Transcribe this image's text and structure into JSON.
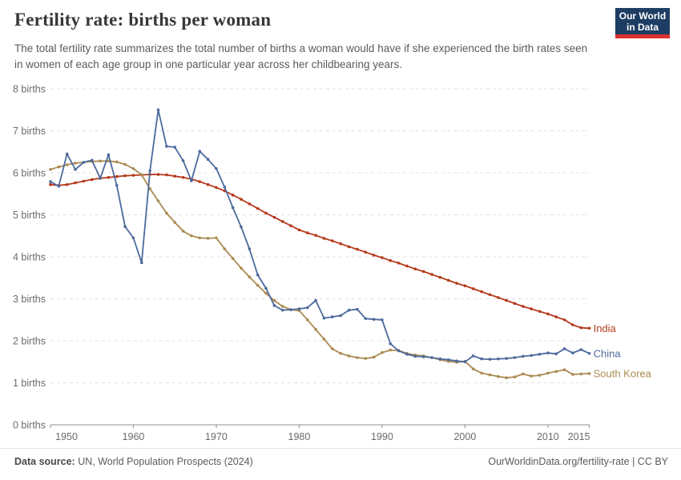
{
  "header": {
    "title": "Fertility rate: births per woman",
    "subtitle": "The total fertility rate summarizes the total number of births a woman would have if she experienced the birth rates seen in women of each age group in one particular year across her childbearing years.",
    "logo_line1": "Our World",
    "logo_line2": "in Data",
    "logo_bg_color": "#1d3d63",
    "logo_stripe_color": "#dc2f2f"
  },
  "chart_data": {
    "type": "line",
    "title": "Fertility rate: births per woman",
    "xlabel": "",
    "ylabel": "births",
    "ylim": [
      0,
      8
    ],
    "ytick_suffix": " births",
    "yticks": [
      0,
      1,
      2,
      3,
      4,
      5,
      6,
      7,
      8
    ],
    "xticks": [
      1950,
      1960,
      1970,
      1980,
      1990,
      2000,
      2010,
      2015
    ],
    "grid": "dashed-horizontal",
    "legend_position": "line-end-labels",
    "x": [
      1950,
      1951,
      1952,
      1953,
      1954,
      1955,
      1956,
      1957,
      1958,
      1959,
      1960,
      1961,
      1962,
      1963,
      1964,
      1965,
      1966,
      1967,
      1968,
      1969,
      1970,
      1971,
      1972,
      1973,
      1974,
      1975,
      1976,
      1977,
      1978,
      1979,
      1980,
      1981,
      1982,
      1983,
      1984,
      1985,
      1986,
      1987,
      1988,
      1989,
      1990,
      1991,
      1992,
      1993,
      1994,
      1995,
      1996,
      1997,
      1998,
      1999,
      2000,
      2001,
      2002,
      2003,
      2004,
      2005,
      2006,
      2007,
      2008,
      2009,
      2010,
      2011,
      2012,
      2013,
      2014,
      2015
    ],
    "series": [
      {
        "name": "India",
        "color": "#b53a1d",
        "values": [
          5.72,
          5.7,
          5.72,
          5.76,
          5.8,
          5.84,
          5.87,
          5.89,
          5.91,
          5.93,
          5.94,
          5.95,
          5.96,
          5.96,
          5.95,
          5.92,
          5.89,
          5.85,
          5.79,
          5.72,
          5.65,
          5.57,
          5.47,
          5.37,
          5.26,
          5.15,
          5.04,
          4.94,
          4.84,
          4.74,
          4.64,
          4.57,
          4.51,
          4.44,
          4.38,
          4.31,
          4.24,
          4.18,
          4.11,
          4.04,
          3.98,
          3.91,
          3.85,
          3.78,
          3.71,
          3.65,
          3.58,
          3.51,
          3.44,
          3.37,
          3.31,
          3.24,
          3.17,
          3.1,
          3.03,
          2.96,
          2.89,
          2.82,
          2.76,
          2.7,
          2.64,
          2.57,
          2.5,
          2.38,
          2.31,
          2.3
        ]
      },
      {
        "name": "South Korea",
        "color": "#ab8a52",
        "values": [
          6.08,
          6.14,
          6.19,
          6.23,
          6.25,
          6.27,
          6.28,
          6.28,
          6.26,
          6.2,
          6.1,
          5.95,
          5.62,
          5.33,
          5.04,
          4.82,
          4.61,
          4.5,
          4.45,
          4.44,
          4.45,
          4.19,
          3.96,
          3.73,
          3.52,
          3.32,
          3.13,
          2.96,
          2.82,
          2.74,
          2.72,
          2.5,
          2.27,
          2.04,
          1.81,
          1.7,
          1.64,
          1.6,
          1.58,
          1.61,
          1.72,
          1.78,
          1.77,
          1.7,
          1.66,
          1.64,
          1.6,
          1.55,
          1.51,
          1.49,
          1.51,
          1.33,
          1.23,
          1.19,
          1.15,
          1.12,
          1.14,
          1.21,
          1.16,
          1.18,
          1.23,
          1.27,
          1.31,
          1.2,
          1.21,
          1.22
        ]
      },
      {
        "name": "China",
        "color": "#4c6a9c",
        "values": [
          5.79,
          5.68,
          6.45,
          6.08,
          6.25,
          6.3,
          5.87,
          6.43,
          5.7,
          4.72,
          4.45,
          3.86,
          6.05,
          7.5,
          6.63,
          6.61,
          6.29,
          5.81,
          6.51,
          6.32,
          6.1,
          5.66,
          5.17,
          4.71,
          4.19,
          3.57,
          3.25,
          2.84,
          2.73,
          2.74,
          2.76,
          2.79,
          2.96,
          2.54,
          2.57,
          2.6,
          2.73,
          2.75,
          2.53,
          2.51,
          2.5,
          1.93,
          1.76,
          1.68,
          1.63,
          1.62,
          1.6,
          1.57,
          1.55,
          1.52,
          1.5,
          1.64,
          1.57,
          1.56,
          1.57,
          1.58,
          1.6,
          1.63,
          1.65,
          1.68,
          1.71,
          1.69,
          1.81,
          1.71,
          1.79,
          1.7
        ]
      }
    ]
  },
  "footer": {
    "source_label": "Data source:",
    "source_text": " UN, World Population Prospects (2024)",
    "url": "OurWorldinData.org/fertility-rate",
    "license": " | CC BY"
  }
}
